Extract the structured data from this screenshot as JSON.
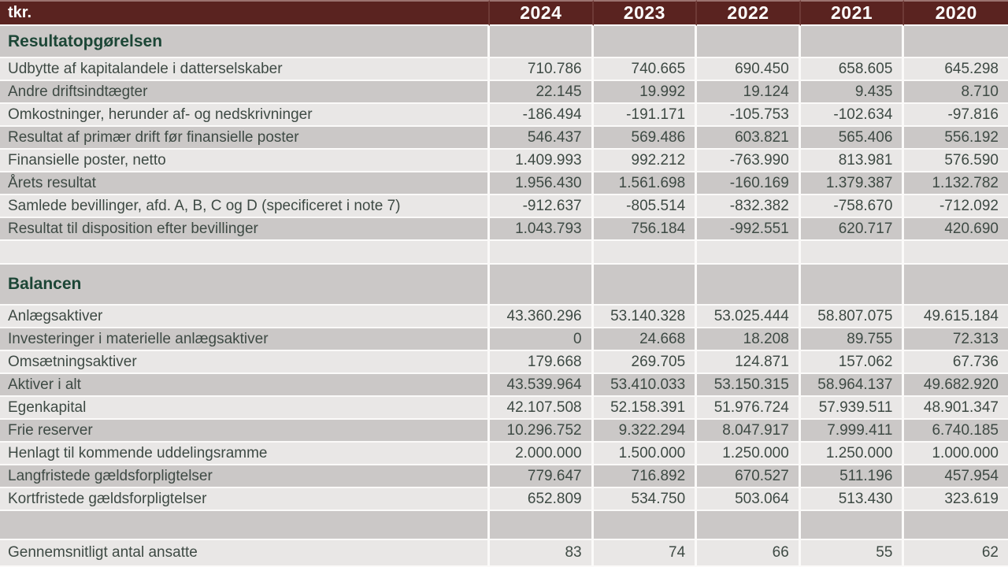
{
  "table": {
    "unit_label": "tkr.",
    "years": [
      "2024",
      "2023",
      "2022",
      "2021",
      "2020"
    ],
    "sections": [
      {
        "title": "Resultatopgørelsen",
        "rows": [
          {
            "label": "Udbytte af kapitalandele i datterselskaber",
            "values": [
              "710.786",
              "740.665",
              "690.450",
              "658.605",
              "645.298"
            ]
          },
          {
            "label": "Andre driftsindtægter",
            "values": [
              "22.145",
              "19.992",
              "19.124",
              "9.435",
              "8.710"
            ]
          },
          {
            "label": "Omkostninger, herunder af- og nedskrivninger",
            "values": [
              "-186.494",
              "-191.171",
              "-105.753",
              "-102.634",
              "-97.816"
            ]
          },
          {
            "label": "Resultat af primær drift før finansielle poster",
            "values": [
              "546.437",
              "569.486",
              "603.821",
              "565.406",
              "556.192"
            ]
          },
          {
            "label": "Finansielle poster, netto",
            "values": [
              "1.409.993",
              "992.212",
              "-763.990",
              "813.981",
              "576.590"
            ]
          },
          {
            "label": "Årets resultat",
            "values": [
              "1.956.430",
              "1.561.698",
              "-160.169",
              "1.379.387",
              "1.132.782"
            ]
          },
          {
            "label": "Samlede bevillinger, afd. A, B, C og D (specificeret i note 7)",
            "values": [
              "-912.637",
              "-805.514",
              "-832.382",
              "-758.670",
              "-712.092"
            ]
          },
          {
            "label": "Resultat til disposition efter bevillinger",
            "values": [
              "1.043.793",
              "756.184",
              "-992.551",
              "620.717",
              "420.690"
            ]
          }
        ]
      },
      {
        "title": "Balancen",
        "rows": [
          {
            "label": "Anlægsaktiver",
            "values": [
              "43.360.296",
              "53.140.328",
              "53.025.444",
              "58.807.075",
              "49.615.184"
            ]
          },
          {
            "label": "Investeringer i materielle anlægsaktiver",
            "values": [
              "0",
              "24.668",
              "18.208",
              "89.755",
              "72.313"
            ]
          },
          {
            "label": "Omsætningsaktiver",
            "values": [
              "179.668",
              "269.705",
              "124.871",
              "157.062",
              "67.736"
            ]
          },
          {
            "label": "Aktiver i alt",
            "values": [
              "43.539.964",
              "53.410.033",
              "53.150.315",
              "58.964.137",
              "49.682.920"
            ]
          },
          {
            "label": "Egenkapital",
            "values": [
              "42.107.508",
              "52.158.391",
              "51.976.724",
              "57.939.511",
              "48.901.347"
            ]
          },
          {
            "label": "Frie reserver",
            "values": [
              "10.296.752",
              "9.322.294",
              "8.047.917",
              "7.999.411",
              "6.740.185"
            ]
          },
          {
            "label": "Henlagt til kommende uddelingsramme",
            "values": [
              "2.000.000",
              "1.500.000",
              "1.250.000",
              "1.250.000",
              "1.000.000"
            ]
          },
          {
            "label": "Langfristede gældsforpligtelser",
            "values": [
              "779.647",
              "716.892",
              "670.527",
              "511.196",
              "457.954"
            ]
          },
          {
            "label": "Kortfristede gældsforpligtelser",
            "values": [
              "652.809",
              "534.750",
              "503.064",
              "513.430",
              "323.619"
            ]
          }
        ]
      }
    ],
    "summary_row": {
      "label": "Gennemsnitligt antal ansatte",
      "values": [
        "83",
        "74",
        "66",
        "55",
        "62"
      ]
    }
  },
  "colors": {
    "header-bg": "#5a2320",
    "header-top": "#9b7370",
    "header-divider": "#6e3a36",
    "row-dark": "#cbc8c7",
    "row-light": "#e9e7e6",
    "gap": "#fbfaf9",
    "body-text": "#3e4a44",
    "section-text": "#1c4636",
    "header-text": "#ffffff"
  }
}
